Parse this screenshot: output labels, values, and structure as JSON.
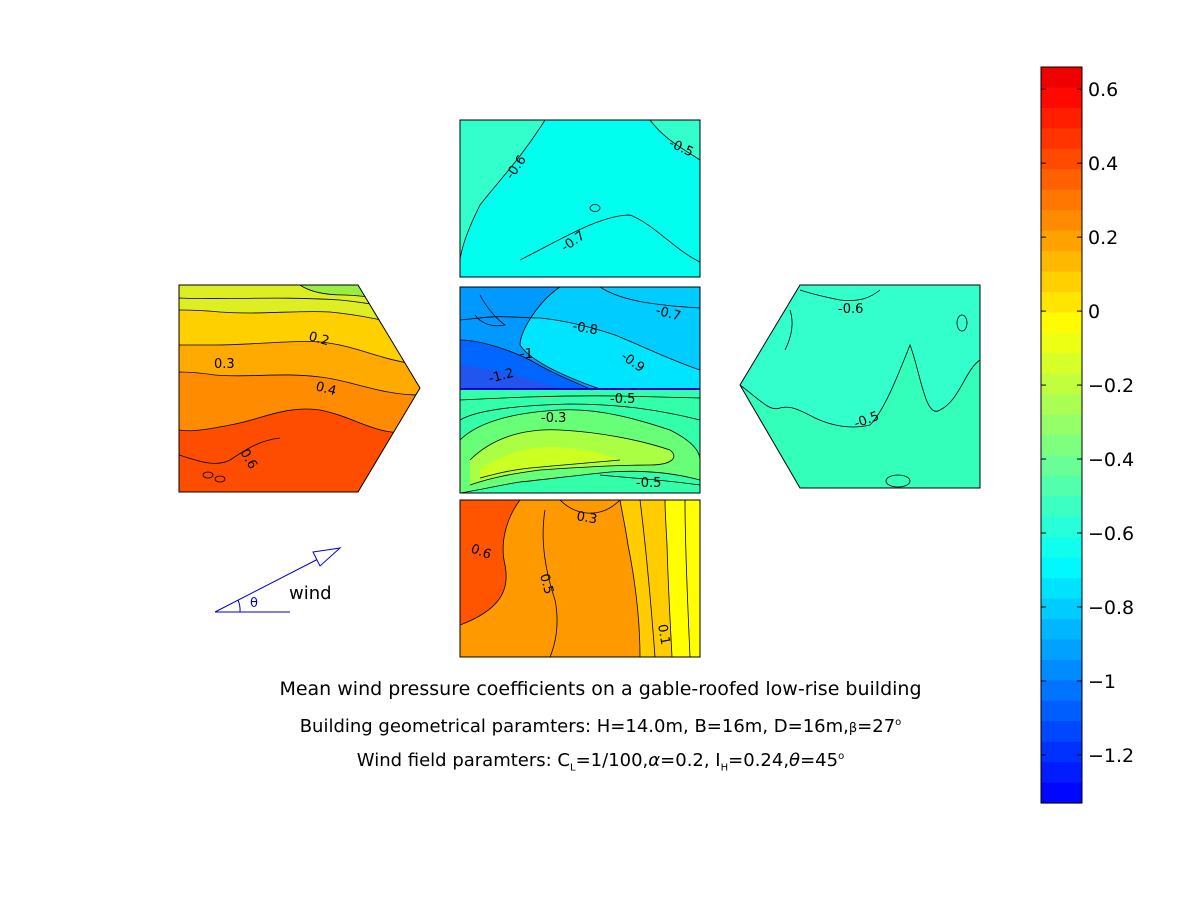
{
  "chart_data": {
    "type": "heatmap",
    "title": "Mean wind pressure coefficients on a gable-roofed low-rise building",
    "subtitle_1_prefix": "Building geometrical paramters: H=14.0m, B=16m, D=16m, ",
    "subtitle_1_beta_symbol": "β",
    "subtitle_1_beta_value": "=27",
    "subtitle_1_degree": "o",
    "subtitle_2_prefix": "Wind field paramters: C",
    "subtitle_2_cl_sub": "L",
    "subtitle_2_cl_value": "=1/100, ",
    "subtitle_2_alpha_symbol": "α",
    "subtitle_2_alpha_value": "=0.2, I",
    "subtitle_2_ih_sub": "H",
    "subtitle_2_ih_value": "=0.24, ",
    "subtitle_2_theta_symbol": "θ",
    "subtitle_2_theta_value": "=45",
    "subtitle_2_degree": "o",
    "colorbar": {
      "min": -1.33,
      "max": 0.66,
      "ticks": [
        0.6,
        0.4,
        0.2,
        0,
        -0.2,
        -0.4,
        -0.6,
        -0.8,
        -1,
        -1.2
      ],
      "tick_labels": [
        "0.6",
        "0.4",
        "0.2",
        "0",
        "−0.2",
        "−0.4",
        "−0.6",
        "−0.8",
        "−1",
        "−1.2"
      ],
      "colormap": "jet"
    },
    "legend_symbol": {
      "label": "wind",
      "angle_symbol": "θ",
      "color": "#0000cc"
    },
    "panels": [
      {
        "name": "top-wall",
        "contour_labels": [
          "-0.5",
          "-0.6",
          "-0.7"
        ],
        "mean_level": -0.68
      },
      {
        "name": "left-wall",
        "contour_labels": [
          "0.2",
          "0.3",
          "0.4",
          "0.6"
        ],
        "mean_level": 0.4
      },
      {
        "name": "roof-upper",
        "contour_labels": [
          "-0.7",
          "-0.8",
          "-0.9",
          "-1",
          "-1.2"
        ],
        "mean_level": -0.95
      },
      {
        "name": "roof-lower",
        "contour_labels": [
          "-0.5",
          "-0.3",
          "-0.5"
        ],
        "mean_level": -0.3
      },
      {
        "name": "right-wall",
        "contour_labels": [
          "-0.6",
          "-0.5"
        ],
        "mean_level": -0.55
      },
      {
        "name": "bottom-wall",
        "contour_labels": [
          "0.3",
          "0.6",
          "0.5",
          "0.1"
        ],
        "mean_level": 0.45
      }
    ]
  },
  "colors": {
    "accent": "#0000cc",
    "outline": "#000000"
  }
}
